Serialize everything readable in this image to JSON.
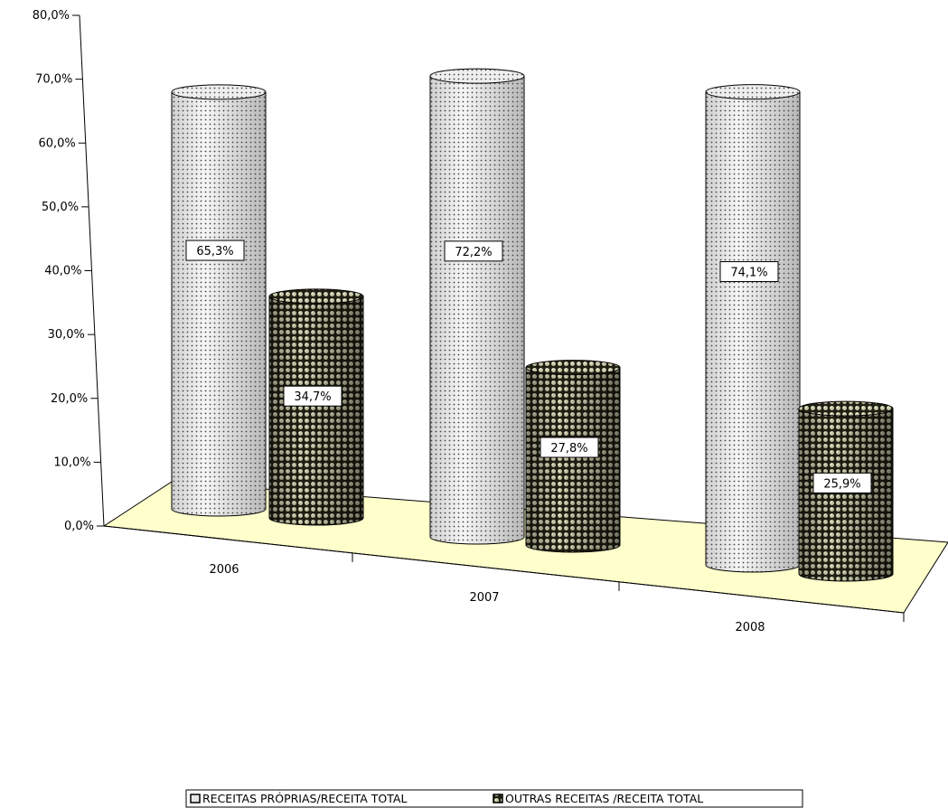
{
  "chart_data": {
    "type": "bar",
    "subtype": "3d-cylinder",
    "title": "",
    "xlabel": "",
    "ylabel": "",
    "categories": [
      "2006",
      "2007",
      "2008"
    ],
    "series": [
      {
        "name": "RECEITAS PRÓPRIAS/RECEITA TOTAL",
        "values": [
          65.3,
          72.2,
          74.1
        ],
        "labels": [
          "65,3%",
          "72,2%",
          "74,1%"
        ]
      },
      {
        "name": "OUTRAS RECEITAS /RECEITA TOTAL",
        "values": [
          34.7,
          27.8,
          25.9
        ],
        "labels": [
          "34,7%",
          "27,8%",
          "25,9%"
        ]
      }
    ],
    "ylim": [
      0,
      80
    ],
    "yticks": [
      0,
      10,
      20,
      30,
      40,
      50,
      60,
      70,
      80
    ],
    "ytick_labels": [
      "0,0%",
      "10,0%",
      "20,0%",
      "30,0%",
      "40,0%",
      "50,0%",
      "60,0%",
      "70,0%",
      "80,0%"
    ],
    "grid": false,
    "legend_position": "bottom",
    "floor_color": "#ffffcc",
    "series_colors": [
      "#d9d9d9",
      "#2b2b1a"
    ]
  }
}
